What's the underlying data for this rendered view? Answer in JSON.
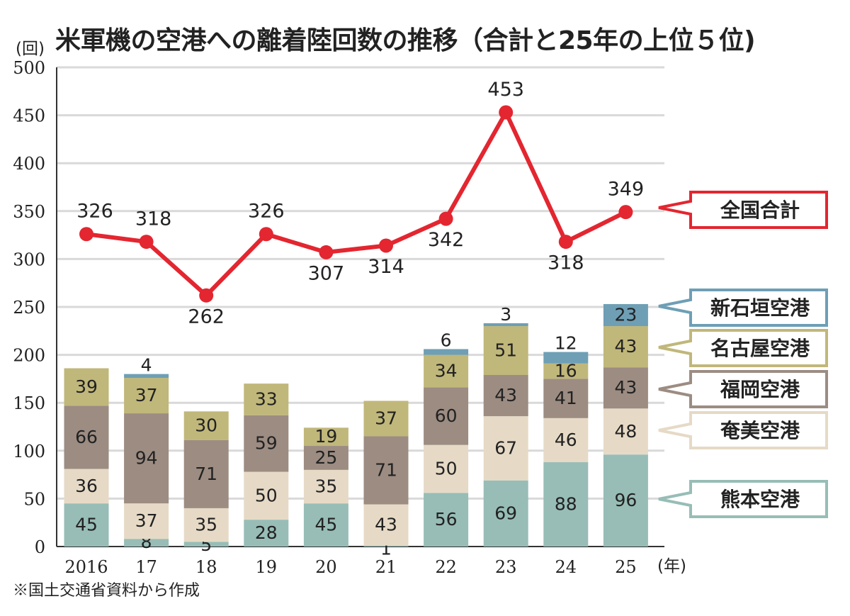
{
  "title": "米軍機の空港への離着陸回数の推移（合計と25年の上位５位)",
  "source_note": "※国土交通省資料から作成",
  "colors": {
    "熊本空港": "#97bdb6",
    "奄美空港": "#e6dac6",
    "福岡空港": "#9c8c82",
    "名古屋空港": "#c0b77a",
    "新石垣空港": "#6e9fb5",
    "全国合計": "#e32630",
    "grid": "#d9d9d9"
  },
  "chart_data": {
    "type": "bar",
    "ylabel": "(回)",
    "xlabel": "(年)",
    "ylim": [
      0,
      500
    ],
    "yticks": [
      "0",
      "50",
      "100",
      "150",
      "200",
      "250",
      "300",
      "350",
      "400",
      "450",
      "500"
    ],
    "categories": [
      "2016",
      "17",
      "18",
      "19",
      "20",
      "21",
      "22",
      "23",
      "24",
      "25"
    ],
    "stack_order": [
      "熊本空港",
      "奄美空港",
      "福岡空港",
      "名古屋空港",
      "新石垣空港"
    ],
    "series": [
      {
        "name": "熊本空港",
        "values": [
          45,
          8,
          5,
          28,
          45,
          1,
          56,
          69,
          88,
          96
        ]
      },
      {
        "name": "奄美空港",
        "values": [
          36,
          37,
          35,
          50,
          35,
          43,
          50,
          67,
          46,
          48
        ]
      },
      {
        "name": "福岡空港",
        "values": [
          66,
          94,
          71,
          59,
          25,
          71,
          60,
          43,
          41,
          43
        ]
      },
      {
        "name": "名古屋空港",
        "values": [
          39,
          37,
          30,
          33,
          19,
          37,
          34,
          51,
          16,
          43
        ]
      },
      {
        "name": "新石垣空港",
        "values": [
          0,
          4,
          0,
          0,
          0,
          0,
          6,
          3,
          12,
          23
        ]
      }
    ],
    "line": {
      "name": "全国合計",
      "values": [
        326,
        318,
        262,
        326,
        307,
        314,
        342,
        453,
        318,
        349
      ]
    },
    "grid": true,
    "legend_placement": "right"
  }
}
